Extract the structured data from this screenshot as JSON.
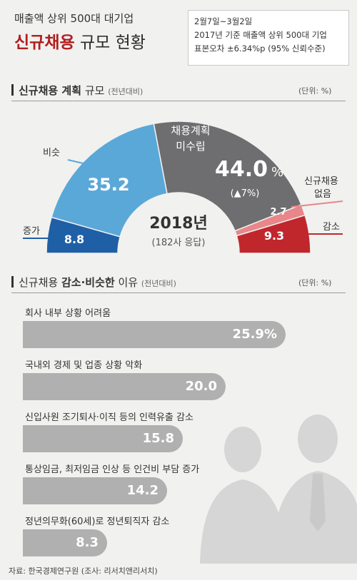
{
  "header": {
    "kicker": "매출액 상위 500대 대기업",
    "title_bold": "신규채용",
    "title_rest": "규모 현황"
  },
  "info": {
    "line1": "2월7일~3월2일",
    "line2": "2017년 기준 매출액 상위 500대 기업",
    "line3": "표본오차 ±6.34%p (95% 신뢰수준)"
  },
  "section1": {
    "title_bold": "신규채용 계획",
    "title_rest": "규모",
    "note": "(전년대비)",
    "unit": "(단위: %)"
  },
  "section2": {
    "title_pre": "신규채용",
    "title_bold": "감소·비슷한",
    "title_rest": "이유",
    "note": "(전년대비)",
    "unit": "(단위: %)"
  },
  "chart_data": [
    {
      "type": "pie",
      "center_label": "2018년",
      "center_sub": "(182사 응답)",
      "slices": [
        {
          "label": "증가",
          "value": 8.8,
          "value_text": "8.8",
          "color": "#1f5fa6"
        },
        {
          "label": "비슷",
          "value": 35.2,
          "value_text": "35.2",
          "color": "#5aa8d8"
        },
        {
          "label": "채용계획 미수립",
          "value": 44.0,
          "value_text": "44.0",
          "unit": "%",
          "sub": "(▲7%)",
          "color": "#6e6e70"
        },
        {
          "label": "신규채용 없음",
          "value": 2.7,
          "value_text": "2.7",
          "color": "#e8868a"
        },
        {
          "label": "감소",
          "value": 9.3,
          "value_text": "9.3",
          "color": "#c0272d"
        }
      ]
    },
    {
      "type": "bar",
      "categories": [
        "회사 내부 상황 어려움",
        "국내외 경제 및 업종 상황 악화",
        "신입사원 조기퇴사·이직 등의 인력유출 감소",
        "통상임금, 최저임금 인상 등 인건비 부담 증가",
        "정년의무화(60세)로 정년퇴직자 감소"
      ],
      "values": [
        25.9,
        20.0,
        15.8,
        14.2,
        8.3
      ],
      "value_labels": [
        "25.9%",
        "20.0",
        "15.8",
        "14.2",
        "8.3"
      ],
      "color": "#b0b0b0"
    }
  ],
  "footer": {
    "source": "자료: 한국경제연구원 (조사: 리서치앤리서치)"
  }
}
